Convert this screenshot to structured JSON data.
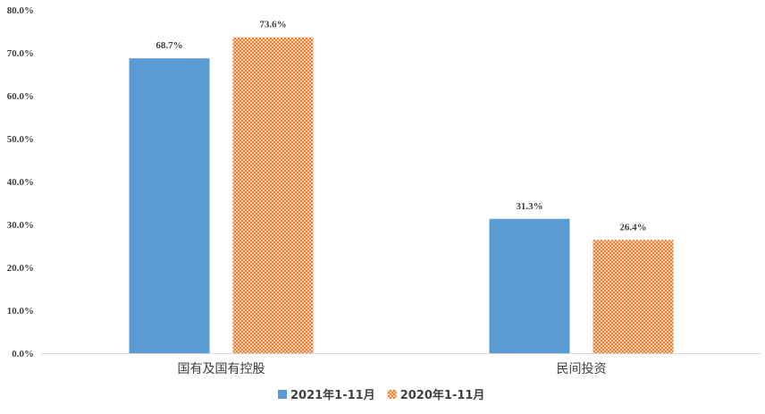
{
  "chart_data": {
    "type": "bar",
    "categories": [
      "国有及国有控股",
      "民间投资"
    ],
    "series": [
      {
        "name": "2021年1-11月",
        "values": [
          68.7,
          31.3
        ],
        "color": "#5b9bd5",
        "fill": "solid"
      },
      {
        "name": "2020年1-11月",
        "values": [
          73.6,
          26.4
        ],
        "color": "#ed7d31",
        "fill": "checkered"
      }
    ],
    "data_labels": [
      [
        "68.7%",
        "31.3%"
      ],
      [
        "73.6%",
        "26.4%"
      ]
    ],
    "yticks": [
      "0.0%",
      "10.0%",
      "20.0%",
      "30.0%",
      "40.0%",
      "50.0%",
      "60.0%",
      "70.0%",
      "80.0%"
    ],
    "ylim": [
      0,
      80
    ],
    "title": "",
    "xlabel": "",
    "ylabel": "",
    "grid": false,
    "legend_position": "bottom"
  }
}
